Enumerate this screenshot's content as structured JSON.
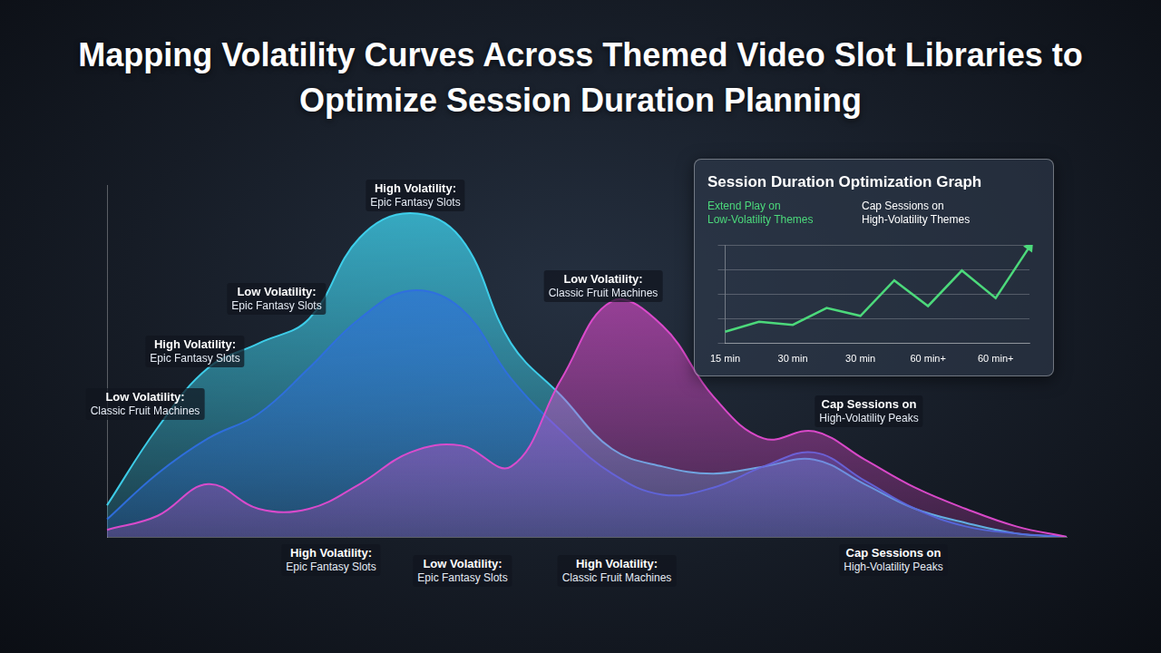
{
  "title": "Mapping Volatility Curves Across Themed Video Slot Libraries to Optimize Session Duration Planning",
  "chart_data": [
    {
      "type": "area",
      "categories": [
        null,
        null,
        null,
        null,
        null,
        null,
        null,
        null,
        null,
        null,
        null,
        null,
        null,
        null,
        null,
        null,
        null,
        null,
        null,
        null
      ],
      "series": [
        {
          "color": "#3fd4f0",
          "values": [
            9,
            31,
            48,
            55,
            62,
            85,
            92,
            85,
            55,
            40,
            25,
            20,
            18,
            20,
            22,
            15,
            8,
            4,
            1,
            0
          ]
        },
        {
          "color": "#2f6fe0",
          "values": [
            5,
            18,
            28,
            35,
            48,
            62,
            70,
            65,
            45,
            30,
            18,
            12,
            14,
            20,
            24,
            16,
            8,
            3,
            1,
            0
          ]
        },
        {
          "color": "#e24bd0",
          "values": [
            2,
            6,
            15,
            8,
            8,
            15,
            24,
            26,
            20,
            45,
            67,
            60,
            40,
            28,
            30,
            22,
            14,
            8,
            3,
            0
          ]
        }
      ],
      "ylim": [
        0,
        100
      ],
      "grid": false,
      "tick_labels": false,
      "annotations": [
        {
          "heading": "High Volatility:",
          "text": "Epic Fantasy Slots"
        },
        {
          "heading": "Low Volatility:",
          "text": "Epic Fantasy Slots"
        },
        {
          "heading": "High Volatility:",
          "text": "Epic Fantasy Slots"
        },
        {
          "heading": "Low Volatility:",
          "text": "Classic Fruit Machines"
        },
        {
          "heading": "Low Volatility:",
          "text": "Classic Fruit Machines"
        },
        {
          "heading": "Cap Sessions on",
          "text": "High-Volatility Peaks"
        },
        {
          "heading": "High Volatility:",
          "text": "Epic Fantasy Slots"
        },
        {
          "heading": "Low Volatility:",
          "text": "Epic Fantasy Slots"
        },
        {
          "heading": "High Volatility:",
          "text": "Classic Fruit Machines"
        },
        {
          "heading": "Cap Sessions on",
          "text": "High-Volatility Peaks"
        }
      ]
    },
    {
      "type": "line",
      "title": "Session Duration Optimization Graph",
      "annotations": [
        {
          "lines": [
            "Extend Play on",
            "Low-Volatility Themes"
          ],
          "color": "#4cd97b"
        },
        {
          "lines": [
            "Cap Sessions on",
            "High-Volatility Themes"
          ],
          "color": "#ffffff"
        }
      ],
      "categories": [
        "15 min",
        null,
        "30 min",
        null,
        "30 min",
        null,
        "60 min+",
        null,
        "60 min+",
        null
      ],
      "values": [
        12,
        22,
        19,
        36,
        28,
        64,
        38,
        74,
        46,
        98
      ],
      "color": "#4cd97b",
      "marker": "arrow",
      "ylim": [
        0,
        100
      ],
      "yticks": [
        0,
        25,
        50,
        75,
        100
      ],
      "grid": true,
      "tick_labels": "x"
    }
  ]
}
